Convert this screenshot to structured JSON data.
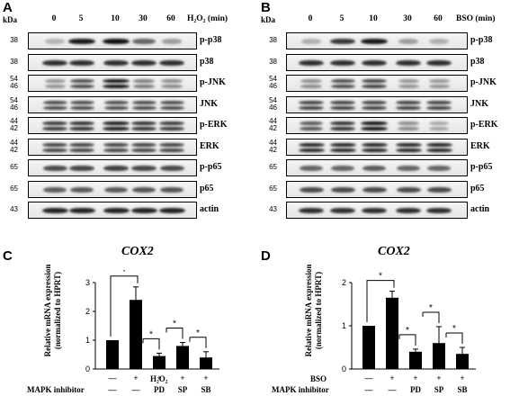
{
  "panels": {
    "A": {
      "letter": "A",
      "kda": "kDa",
      "treatment_label": "H₂O₂ (min)",
      "timepoints": [
        "0",
        "5",
        "10",
        "30",
        "60"
      ],
      "blots": [
        {
          "label": "p-p38",
          "mw": [
            "38"
          ],
          "intensity": [
            0.12,
            0.95,
            1.0,
            0.55,
            0.25
          ]
        },
        {
          "label": "p38",
          "mw": [
            "38"
          ],
          "intensity": [
            0.85,
            0.85,
            0.85,
            0.85,
            0.85
          ]
        },
        {
          "label": "p-JNK",
          "mw": [
            "54",
            "46"
          ],
          "intensity": [
            0.3,
            0.7,
            1.0,
            0.45,
            0.35
          ]
        },
        {
          "label": "JNK",
          "mw": [
            "54",
            "46"
          ],
          "intensity": [
            0.7,
            0.7,
            0.7,
            0.7,
            0.7
          ]
        },
        {
          "label": "p-ERK",
          "mw": [
            "44",
            "42"
          ],
          "intensity": [
            0.8,
            0.85,
            0.95,
            0.85,
            0.8
          ]
        },
        {
          "label": "ERK",
          "mw": [
            "44",
            "42"
          ],
          "intensity": [
            0.75,
            0.75,
            0.75,
            0.75,
            0.75
          ]
        },
        {
          "label": "p-p65",
          "mw": [
            "65"
          ],
          "intensity": [
            0.7,
            0.72,
            0.75,
            0.72,
            0.7
          ]
        },
        {
          "label": "p65",
          "mw": [
            "65"
          ],
          "intensity": [
            0.6,
            0.62,
            0.62,
            0.65,
            0.65
          ]
        },
        {
          "label": "actin",
          "mw": [
            "43"
          ],
          "intensity": [
            0.9,
            0.9,
            0.9,
            0.9,
            0.9
          ]
        }
      ]
    },
    "B": {
      "letter": "B",
      "kda": "kDa",
      "treatment_label": "BSO (min)",
      "timepoints": [
        "0",
        "5",
        "10",
        "30",
        "60"
      ],
      "blots": [
        {
          "label": "p-p38",
          "mw": [
            "38"
          ],
          "intensity": [
            0.15,
            0.8,
            0.95,
            0.25,
            0.15
          ]
        },
        {
          "label": "p38",
          "mw": [
            "38"
          ],
          "intensity": [
            0.85,
            0.85,
            0.85,
            0.85,
            0.85
          ]
        },
        {
          "label": "p-JNK",
          "mw": [
            "54",
            "46"
          ],
          "intensity": [
            0.35,
            0.7,
            0.75,
            0.3,
            0.3
          ]
        },
        {
          "label": "JNK",
          "mw": [
            "54",
            "46"
          ],
          "intensity": [
            0.75,
            0.75,
            0.75,
            0.75,
            0.75
          ]
        },
        {
          "label": "p-ERK",
          "mw": [
            "44",
            "42"
          ],
          "intensity": [
            0.65,
            0.85,
            1.0,
            0.35,
            0.2
          ]
        },
        {
          "label": "ERK",
          "mw": [
            "44",
            "42"
          ],
          "intensity": [
            0.9,
            0.9,
            0.9,
            0.9,
            0.9
          ]
        },
        {
          "label": "p-p65",
          "mw": [
            "65"
          ],
          "intensity": [
            0.55,
            0.55,
            0.6,
            0.55,
            0.55
          ]
        },
        {
          "label": "p65",
          "mw": [
            "65"
          ],
          "intensity": [
            0.7,
            0.7,
            0.7,
            0.7,
            0.7
          ]
        },
        {
          "label": "actin",
          "mw": [
            "43"
          ],
          "intensity": [
            0.85,
            0.85,
            0.85,
            0.85,
            0.85
          ]
        }
      ]
    },
    "C": {
      "letter": "C",
      "gene": "COX2",
      "ylabel_line1": "Relative mRNA expression",
      "ylabel_line2": "(normalized to HPRT)",
      "treatment_label": "H₂O₂",
      "treatment_row": [
        "—",
        "+",
        "+",
        "+",
        "+"
      ],
      "inhibitor_label": "MAPK inhibitor",
      "inhibitor_row": [
        "—",
        "—",
        "PD",
        "SP",
        "SB"
      ]
    },
    "D": {
      "letter": "D",
      "gene": "COX2",
      "ylabel_line1": "Relative mRNA expression",
      "ylabel_line2": "(normalized to HPRT)",
      "treatment_label": "BSO",
      "treatment_row": [
        "—",
        "+",
        "+",
        "+",
        "+"
      ],
      "inhibitor_label": "MAPK inhibitor",
      "inhibitor_row": [
        "—",
        "—",
        "PD",
        "SP",
        "SB"
      ]
    }
  },
  "chart_data": [
    {
      "type": "bar",
      "panel": "C",
      "title": "COX2",
      "ylabel": "Relative mRNA expression (normalized to HPRT)",
      "categories": [
        "— / —",
        "+ / —",
        "+ / PD",
        "+ / SP",
        "+ / SB"
      ],
      "values": [
        1.0,
        2.4,
        0.45,
        0.8,
        0.4
      ],
      "errors": [
        0.0,
        0.45,
        0.1,
        0.12,
        0.2
      ],
      "ylim": [
        0,
        3
      ],
      "yticks": [
        "0",
        "1",
        "2",
        "3"
      ],
      "significance": [
        "*",
        "*",
        "*",
        "*"
      ]
    },
    {
      "type": "bar",
      "panel": "D",
      "title": "COX2",
      "ylabel": "Relative mRNA expression (normalized to HPRT)",
      "categories": [
        "— / —",
        "+ / —",
        "+ / PD",
        "+ / SP",
        "+ / SB"
      ],
      "values": [
        1.0,
        1.65,
        0.4,
        0.6,
        0.35
      ],
      "errors": [
        0.0,
        0.15,
        0.06,
        0.38,
        0.15
      ],
      "ylim": [
        0,
        2
      ],
      "yticks": [
        "0",
        "1",
        "2"
      ],
      "significance": [
        "*",
        "*",
        "*",
        "*"
      ]
    }
  ]
}
